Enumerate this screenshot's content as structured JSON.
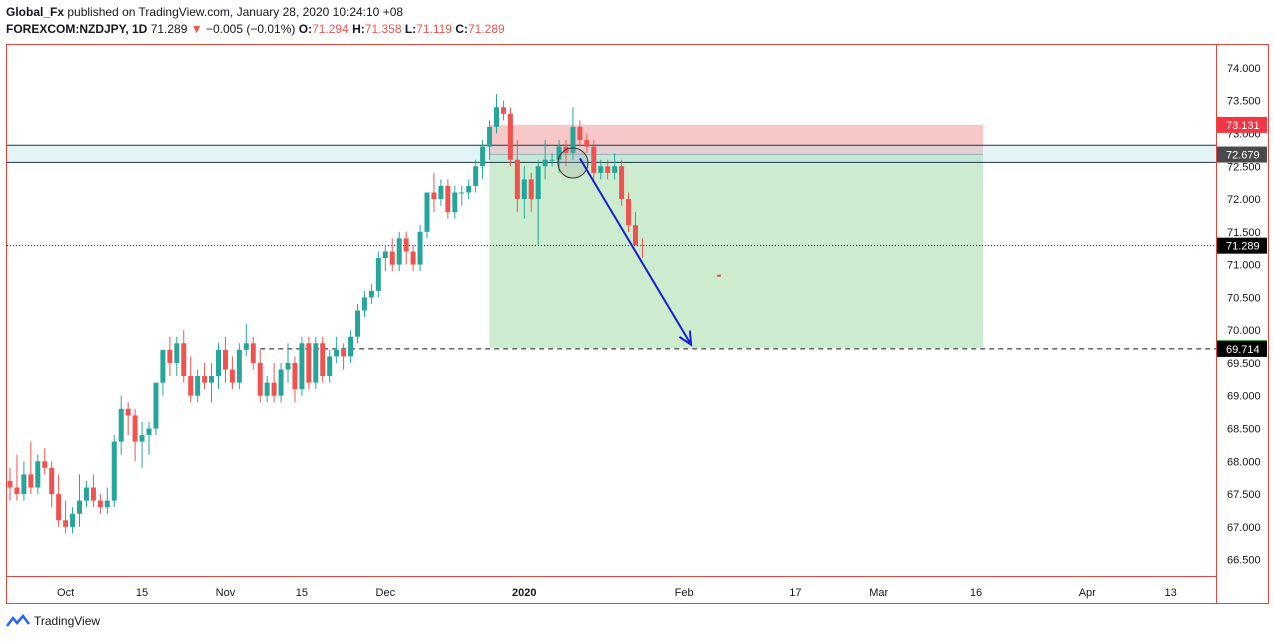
{
  "header": {
    "author": "Global_Fx",
    "published_text": "published on TradingView.com, January 28, 2020 10:24:10 +08",
    "symbol": "FOREXCOM:NZDJPY, 1D",
    "last": "71.289",
    "change": "−0.005 (−0.01%)",
    "o_label": "O:",
    "o": "71.294",
    "h_label": "H:",
    "h": "71.358",
    "l_label": "L:",
    "l": "71.119",
    "c_label": "C:",
    "c": "71.289"
  },
  "footer": {
    "brand": "TradingView"
  },
  "colors": {
    "up": "#26a69a",
    "down": "#ef5350",
    "border": "#e0463c",
    "stop_zone": "#f8c8c8",
    "target_zone": "#cdeccf",
    "arrow": "#1520c8",
    "resistance": "#1a3a4a",
    "badge_red": "#f23645",
    "badge_dark": "#4a4a4a",
    "badge_black": "#000000",
    "badge_green": "#14a014"
  },
  "chart_data": {
    "type": "candlestick",
    "ylim": [
      66.25,
      74.35
    ],
    "y_ticks": [
      "74.000",
      "73.500",
      "73.000",
      "72.500",
      "72.000",
      "71.500",
      "71.000",
      "70.500",
      "70.000",
      "69.500",
      "69.000",
      "68.500",
      "68.000",
      "67.500",
      "67.000",
      "66.500"
    ],
    "y_tick_values": [
      74.0,
      73.5,
      73.0,
      72.5,
      72.0,
      71.5,
      71.0,
      70.5,
      70.0,
      69.5,
      69.0,
      68.5,
      68.0,
      67.5,
      67.0,
      66.5
    ],
    "x_ticks": [
      {
        "label": "Oct",
        "bar": 8
      },
      {
        "label": "15",
        "bar": 19
      },
      {
        "label": "Nov",
        "bar": 31
      },
      {
        "label": "15",
        "bar": 42
      },
      {
        "label": "Dec",
        "bar": 54
      },
      {
        "label": "2020",
        "bar": 74
      },
      {
        "label": "Feb",
        "bar": 97
      },
      {
        "label": "17",
        "bar": 113
      },
      {
        "label": "Mar",
        "bar": 125
      },
      {
        "label": "16",
        "bar": 139
      },
      {
        "label": "Apr",
        "bar": 155
      },
      {
        "label": "13",
        "bar": 167
      }
    ],
    "candles": [
      [
        67.7,
        67.9,
        67.4,
        67.6
      ],
      [
        67.6,
        68.1,
        67.4,
        67.5
      ],
      [
        67.5,
        68.0,
        67.4,
        67.8
      ],
      [
        67.8,
        68.3,
        67.5,
        67.6
      ],
      [
        67.6,
        68.1,
        67.5,
        68.0
      ],
      [
        68.0,
        68.2,
        67.8,
        67.9
      ],
      [
        67.9,
        68.0,
        67.3,
        67.5
      ],
      [
        67.5,
        67.8,
        67.0,
        67.1
      ],
      [
        67.1,
        67.4,
        66.9,
        67.0
      ],
      [
        67.0,
        67.3,
        66.9,
        67.2
      ],
      [
        67.2,
        67.8,
        67.0,
        67.4
      ],
      [
        67.4,
        67.7,
        67.3,
        67.6
      ],
      [
        67.6,
        67.8,
        67.3,
        67.4
      ],
      [
        67.4,
        67.5,
        67.2,
        67.3
      ],
      [
        67.3,
        67.6,
        67.2,
        67.4
      ],
      [
        67.4,
        68.4,
        67.3,
        68.3
      ],
      [
        68.3,
        69.0,
        68.1,
        68.8
      ],
      [
        68.8,
        68.9,
        68.4,
        68.7
      ],
      [
        68.7,
        68.8,
        68.0,
        68.3
      ],
      [
        68.3,
        68.6,
        67.9,
        68.4
      ],
      [
        68.4,
        68.6,
        68.1,
        68.5
      ],
      [
        68.5,
        69.2,
        68.4,
        69.2
      ],
      [
        69.2,
        69.7,
        69.0,
        69.7
      ],
      [
        69.7,
        69.9,
        69.3,
        69.5
      ],
      [
        69.5,
        69.9,
        69.3,
        69.8
      ],
      [
        69.8,
        70.0,
        69.2,
        69.3
      ],
      [
        69.3,
        69.6,
        68.9,
        69.0
      ],
      [
        69.0,
        69.4,
        68.9,
        69.3
      ],
      [
        69.3,
        69.5,
        69.1,
        69.2
      ],
      [
        69.2,
        69.5,
        68.9,
        69.3
      ],
      [
        69.3,
        69.8,
        69.1,
        69.7
      ],
      [
        69.7,
        69.9,
        69.2,
        69.4
      ],
      [
        69.4,
        69.6,
        69.1,
        69.2
      ],
      [
        69.2,
        69.8,
        69.1,
        69.7
      ],
      [
        69.7,
        70.1,
        69.6,
        69.8
      ],
      [
        69.8,
        69.9,
        69.4,
        69.5
      ],
      [
        69.5,
        69.7,
        68.9,
        69.0
      ],
      [
        69.0,
        69.3,
        68.9,
        69.2
      ],
      [
        69.2,
        69.5,
        68.9,
        69.0
      ],
      [
        69.0,
        69.5,
        68.9,
        69.4
      ],
      [
        69.4,
        69.8,
        69.2,
        69.5
      ],
      [
        69.5,
        69.6,
        68.9,
        69.1
      ],
      [
        69.1,
        69.9,
        69.0,
        69.8
      ],
      [
        69.8,
        69.9,
        69.1,
        69.2
      ],
      [
        69.2,
        69.9,
        69.1,
        69.8
      ],
      [
        69.8,
        69.9,
        69.2,
        69.3
      ],
      [
        69.3,
        69.7,
        69.2,
        69.6
      ],
      [
        69.6,
        69.9,
        69.5,
        69.7
      ],
      [
        69.7,
        69.8,
        69.4,
        69.6
      ],
      [
        69.6,
        70.0,
        69.5,
        69.9
      ],
      [
        69.9,
        70.4,
        69.8,
        70.3
      ],
      [
        70.3,
        70.6,
        70.2,
        70.5
      ],
      [
        70.5,
        70.7,
        70.4,
        70.6
      ],
      [
        70.6,
        71.2,
        70.5,
        71.1
      ],
      [
        71.1,
        71.3,
        70.9,
        71.2
      ],
      [
        71.2,
        71.4,
        70.9,
        71.0
      ],
      [
        71.0,
        71.5,
        70.9,
        71.4
      ],
      [
        71.4,
        71.5,
        71.0,
        71.2
      ],
      [
        71.2,
        71.3,
        70.9,
        71.0
      ],
      [
        71.0,
        71.6,
        70.9,
        71.5
      ],
      [
        71.5,
        72.1,
        71.4,
        72.1
      ],
      [
        72.1,
        72.4,
        71.8,
        72.0
      ],
      [
        72.0,
        72.3,
        71.9,
        72.2
      ],
      [
        72.2,
        72.3,
        71.7,
        71.8
      ],
      [
        71.8,
        72.2,
        71.7,
        72.1
      ],
      [
        72.1,
        72.2,
        71.9,
        72.1
      ],
      [
        72.1,
        72.3,
        72.0,
        72.2
      ],
      [
        72.2,
        72.6,
        72.1,
        72.5
      ],
      [
        72.5,
        72.9,
        72.3,
        72.8
      ],
      [
        72.8,
        73.2,
        72.6,
        73.1
      ],
      [
        73.1,
        73.6,
        73.0,
        73.4
      ],
      [
        73.4,
        73.5,
        73.2,
        73.3
      ],
      [
        73.3,
        73.4,
        72.5,
        72.6
      ],
      [
        72.6,
        72.9,
        71.8,
        72.0
      ],
      [
        72.0,
        72.5,
        71.7,
        72.3
      ],
      [
        72.3,
        72.4,
        71.8,
        72.0
      ],
      [
        72.0,
        72.6,
        71.3,
        72.5
      ],
      [
        72.5,
        72.9,
        72.3,
        72.6
      ],
      [
        72.6,
        72.7,
        72.5,
        72.6
      ],
      [
        72.6,
        72.9,
        72.4,
        72.8
      ],
      [
        72.8,
        72.9,
        72.5,
        72.7
      ],
      [
        72.7,
        73.4,
        72.6,
        73.1
      ],
      [
        73.1,
        73.2,
        72.8,
        72.9
      ],
      [
        72.9,
        73.0,
        72.7,
        72.8
      ],
      [
        72.8,
        72.9,
        72.3,
        72.4
      ],
      [
        72.4,
        72.6,
        72.3,
        72.5
      ],
      [
        72.5,
        72.6,
        72.3,
        72.4
      ],
      [
        72.4,
        72.7,
        72.3,
        72.5
      ],
      [
        72.5,
        72.6,
        71.9,
        72.0
      ],
      [
        72.0,
        72.1,
        71.5,
        71.6
      ],
      [
        71.6,
        71.8,
        71.3,
        71.3
      ],
      [
        71.3,
        71.4,
        71.1,
        71.289
      ]
    ],
    "levels": {
      "stop": 73.131,
      "entry": 72.679,
      "resistance_top": 72.82,
      "resistance_bottom": 72.56,
      "target": 69.725,
      "dashed": 69.714,
      "last": 71.289
    },
    "zone_bars": [
      69,
      140
    ],
    "stray_mark": {
      "bar": 102,
      "value": 70.83
    },
    "circle": {
      "bar": 81,
      "value": 72.55
    },
    "arrow": {
      "from_bar": 82,
      "from_value": 72.62,
      "to_bar": 98,
      "to_value": 69.78
    },
    "badges": [
      {
        "label": "73.131",
        "key": "stop",
        "color": "badge_red"
      },
      {
        "label": "72.679",
        "key": "entry",
        "color": "badge_dark"
      },
      {
        "label": "71.289",
        "key": "last",
        "color": "badge_black"
      },
      {
        "label": "69.725",
        "key": "target",
        "color": "badge_green"
      },
      {
        "label": "69.714",
        "key": "dashed",
        "color": "badge_black"
      }
    ]
  }
}
